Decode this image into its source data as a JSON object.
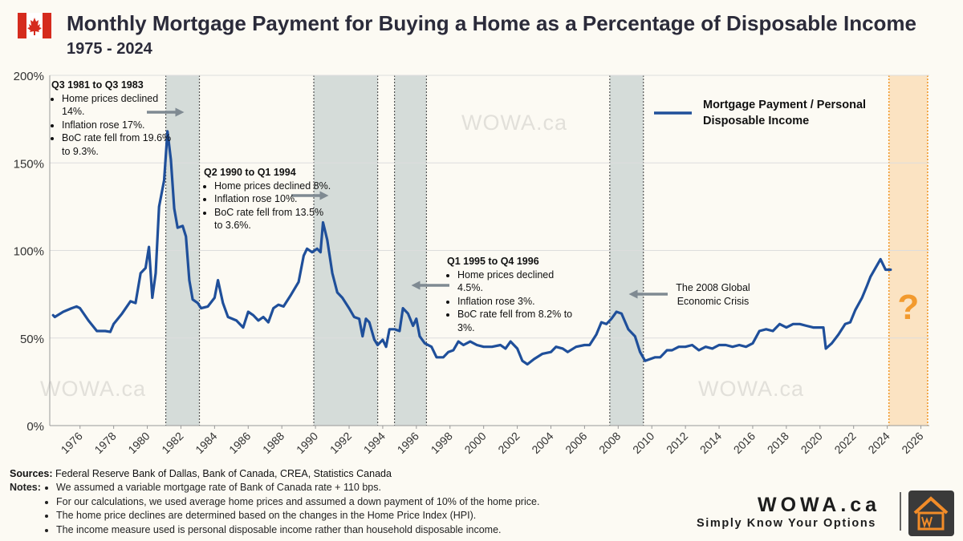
{
  "chart_data": {
    "type": "line",
    "title": "Monthly Mortgage Payment for Buying a Home as a Percentage of Disposable Income",
    "subtitle": "1975 - 2024",
    "x": [
      1974.4,
      1974.5,
      1975.0,
      1975.5,
      1975.8,
      1976.0,
      1976.5,
      1977.0,
      1977.5,
      1977.8,
      1978.0,
      1978.5,
      1979.0,
      1979.3,
      1979.6,
      1979.9,
      1980.1,
      1980.3,
      1980.5,
      1980.7,
      1981.0,
      1981.2,
      1981.4,
      1981.6,
      1981.8,
      1982.1,
      1982.3,
      1982.5,
      1982.7,
      1983.0,
      1983.2,
      1983.6,
      1984.0,
      1984.2,
      1984.5,
      1984.8,
      1985.3,
      1985.7,
      1986.0,
      1986.3,
      1986.6,
      1986.9,
      1987.2,
      1987.5,
      1987.8,
      1988.1,
      1988.5,
      1989.0,
      1989.3,
      1989.5,
      1989.8,
      1990.1,
      1990.3,
      1990.45,
      1990.7,
      1991.0,
      1991.3,
      1991.6,
      1992.0,
      1992.3,
      1992.6,
      1992.8,
      1993.0,
      1993.2,
      1993.5,
      1993.7,
      1994.0,
      1994.2,
      1994.4,
      1994.7,
      1995.0,
      1995.2,
      1995.5,
      1995.8,
      1996.0,
      1996.2,
      1996.5,
      1996.9,
      1997.2,
      1997.6,
      1997.9,
      1998.2,
      1998.5,
      1998.8,
      1999.2,
      1999.6,
      2000.0,
      2000.5,
      2001.0,
      2001.3,
      2001.6,
      2002.0,
      2002.3,
      2002.6,
      2003.0,
      2003.5,
      2004.0,
      2004.3,
      2004.7,
      2005.0,
      2005.5,
      2006.0,
      2006.3,
      2006.7,
      2007.0,
      2007.3,
      2007.6,
      2007.9,
      2008.2,
      2008.6,
      2009.0,
      2009.3,
      2009.6,
      2009.9,
      2010.2,
      2010.5,
      2010.9,
      2011.2,
      2011.6,
      2012.0,
      2012.4,
      2012.8,
      2013.2,
      2013.6,
      2014.0,
      2014.4,
      2014.8,
      2015.2,
      2015.6,
      2016.0,
      2016.4,
      2016.8,
      2017.2,
      2017.6,
      2018.0,
      2018.4,
      2018.8,
      2019.2,
      2019.6,
      2020.0,
      2020.2,
      2020.35,
      2020.7,
      2021.1,
      2021.5,
      2021.8,
      2022.1,
      2022.5,
      2022.8,
      2023.0,
      2023.3,
      2023.6,
      2023.9,
      2024.2
    ],
    "series": [
      {
        "name": "Mortgage Payment / Personal Disposable Income",
        "color": "#1f4f9a",
        "values": [
          63,
          62,
          65,
          67,
          68,
          67,
          60,
          54,
          54,
          53.5,
          58,
          64,
          71,
          70,
          87,
          90,
          102,
          73,
          87,
          125,
          140,
          168,
          152,
          124,
          113,
          114,
          108,
          83,
          72,
          70,
          67,
          68,
          73,
          83,
          70,
          62,
          60,
          56,
          65,
          63,
          60,
          62,
          59,
          67,
          69,
          68,
          74,
          82,
          97,
          101,
          99,
          101,
          99,
          116,
          106,
          87,
          76,
          73,
          67,
          62,
          61,
          51,
          61,
          59,
          49,
          46,
          49,
          45,
          55,
          55,
          54,
          67,
          64,
          57,
          61,
          51,
          47,
          45,
          39,
          39,
          42,
          43,
          48,
          46,
          48,
          46,
          45,
          45,
          46,
          44,
          48,
          44,
          37,
          35,
          38,
          41,
          42,
          45,
          44,
          42,
          45,
          46,
          46,
          52,
          59,
          58,
          61,
          65,
          64,
          55,
          51,
          42,
          37,
          38,
          39,
          39,
          43,
          43,
          45,
          45,
          46,
          43,
          45,
          44,
          46,
          46,
          45,
          46,
          45,
          47,
          54,
          55,
          54,
          58,
          56,
          58,
          58,
          57,
          56,
          56,
          56,
          44,
          47,
          52,
          58,
          59,
          66,
          73,
          80,
          85,
          90,
          95,
          89,
          89
        ]
      }
    ],
    "xlim": [
      1974.2,
      2026.5
    ],
    "ylim": [
      0,
      200
    ],
    "xticks": [
      1976,
      1978,
      1980,
      1982,
      1984,
      1986,
      1988,
      1990,
      1992,
      1994,
      1996,
      1998,
      2000,
      2002,
      2004,
      2006,
      2008,
      2010,
      2012,
      2014,
      2016,
      2018,
      2020,
      2022,
      2024,
      2026
    ],
    "yticks": [
      {
        "value": 0,
        "label": "0%"
      },
      {
        "value": 50,
        "label": "50%"
      },
      {
        "value": 100,
        "label": "100%"
      },
      {
        "value": 150,
        "label": "150%"
      },
      {
        "value": 200,
        "label": "200%"
      }
    ],
    "grid": true,
    "legend": "upper right",
    "shaded_periods": [
      [
        1981.1,
        1983.1
      ],
      [
        1989.9,
        1993.7
      ],
      [
        1994.7,
        1996.6
      ],
      [
        2007.5,
        2009.5
      ]
    ],
    "shade_color": "#d5dcd9",
    "forecast_period": [
      2024.1,
      2026.4
    ],
    "forecast_color": "#fbe3c2",
    "forecast_mark": "?",
    "watermark": "WOWA.ca",
    "annotations": [
      {
        "title": "Q3 1981 to Q3 1983",
        "bullets": [
          "Home prices declined 14%.",
          "Inflation rose 17%.",
          "BoC rate fell from 19.6% to 9.3%."
        ]
      },
      {
        "title": "Q2 1990 to Q1 1994",
        "bullets": [
          "Home prices declined 8%.",
          "Inflation rose 10%.",
          "BoC rate fell from 13.5% to 3.6%."
        ]
      },
      {
        "title": "Q1 1995 to Q4 1996",
        "bullets": [
          "Home prices declined 4.5%.",
          "Inflation rose 3%.",
          "BoC rate fell from 8.2% to 3%."
        ]
      },
      {
        "text": "The 2008 Global Economic Crisis"
      }
    ]
  },
  "footer": {
    "sources_label": "Sources:",
    "sources": "Federal Reserve Bank of Dallas, Bank of Canada, CREA, Statistics Canada",
    "notes_label": "Notes:",
    "notes": [
      "We assumed a variable mortgage rate of Bank of Canada rate + 110 bps.",
      "For our calculations, we used average home prices and assumed a down payment of 10% of the home price.",
      "The home price declines are determined based on the changes in the Home Price Index (HPI).",
      "The income measure used is personal disposable income rather than household disposable income."
    ],
    "brand": "WOWA.ca",
    "tagline": "Simply Know Your Options"
  }
}
